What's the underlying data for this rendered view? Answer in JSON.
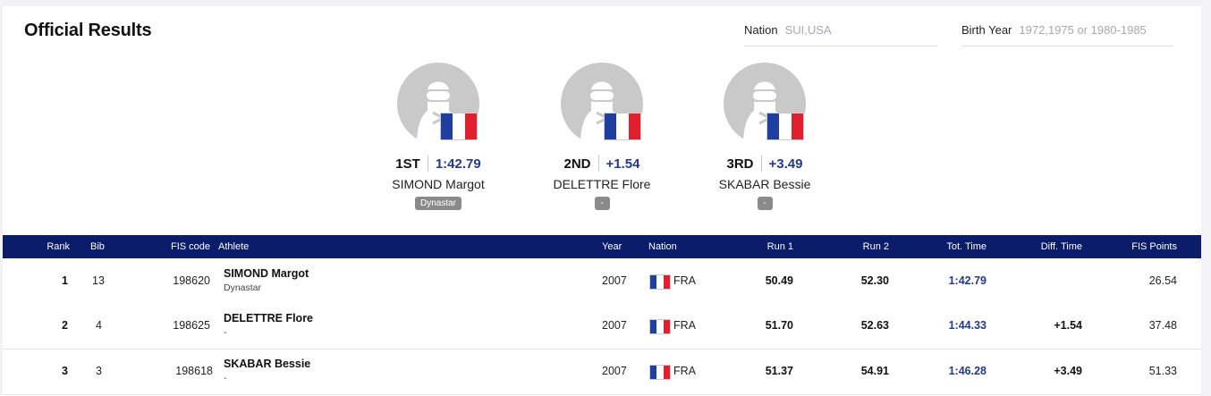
{
  "page": {
    "title": "Official Results"
  },
  "filters": {
    "nation": {
      "label": "Nation",
      "placeholder": "SUI,USA"
    },
    "birth_year": {
      "label": "Birth Year",
      "placeholder": "1972,1975 or 1980-1985"
    }
  },
  "podium": [
    {
      "place": "1ST",
      "time": "1:42.79",
      "name": "SIMOND Margot",
      "brand": "Dynastar",
      "flag": "france-flag-icon"
    },
    {
      "place": "2ND",
      "time": "+1.54",
      "name": "DELETTRE Flore",
      "brand": "-",
      "flag": "france-flag-icon"
    },
    {
      "place": "3RD",
      "time": "+3.49",
      "name": "SKABAR Bessie",
      "brand": "-",
      "flag": "france-flag-icon"
    }
  ],
  "table": {
    "headers": {
      "rank": "Rank",
      "bib": "Bib",
      "fis_code": "FIS code",
      "athlete": "Athlete",
      "year": "Year",
      "nation": "Nation",
      "run1": "Run 1",
      "run2": "Run 2",
      "tot_time": "Tot. Time",
      "diff_time": "Diff. Time",
      "fis_points": "FIS Points"
    },
    "rows": [
      {
        "rank": "1",
        "bib": "13",
        "fis_code": "198620",
        "name": "SIMOND Margot",
        "brand": "Dynastar",
        "year": "2007",
        "nation": "FRA",
        "run1": "50.49",
        "run2": "52.30",
        "tot_time": "1:42.79",
        "diff_time": "",
        "fis_points": "26.54"
      },
      {
        "rank": "2",
        "bib": "4",
        "fis_code": "198625",
        "name": "DELETTRE Flore",
        "brand": "-",
        "year": "2007",
        "nation": "FRA",
        "run1": "51.70",
        "run2": "52.63",
        "tot_time": "1:44.33",
        "diff_time": "+1.54",
        "fis_points": "37.48"
      },
      {
        "rank": "3",
        "bib": "3",
        "fis_code": "198618",
        "name": "SKABAR Bessie",
        "brand": "-",
        "year": "2007",
        "nation": "FRA",
        "run1": "51.37",
        "run2": "54.91",
        "tot_time": "1:46.28",
        "diff_time": "+3.49",
        "fis_points": "51.33"
      }
    ]
  },
  "colors": {
    "header_bg": "#0b1c6a",
    "time_accent": "#243a8c",
    "badge_bg": "#8a8a8a"
  }
}
